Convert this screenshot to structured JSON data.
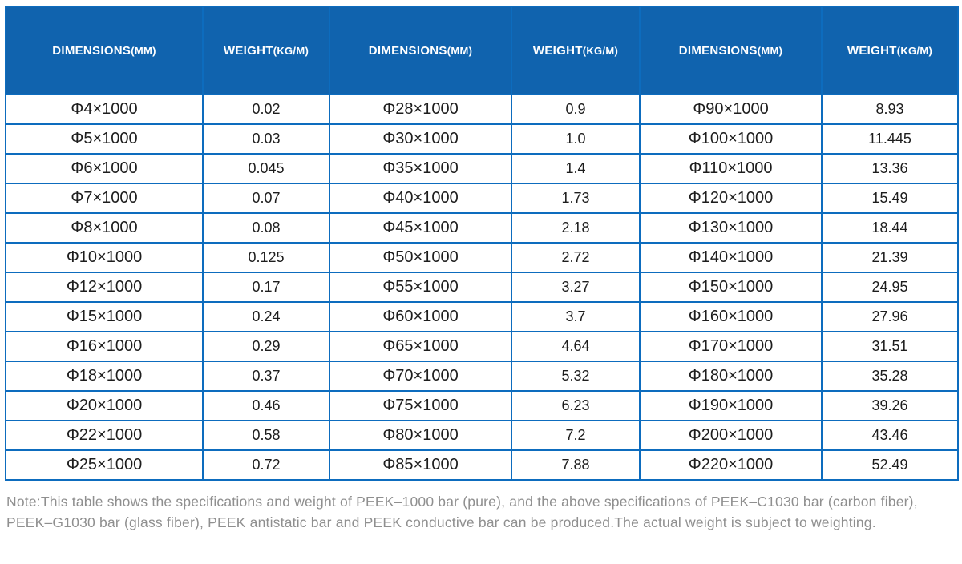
{
  "colors": {
    "header_background": "#1063ae",
    "grid_border": "#0d6cbe",
    "cell_text": "#1d1d1d",
    "note_text": "#8f8f8f"
  },
  "header": {
    "dimensions": {
      "label": "DIMENSIONS",
      "unit": "(MM)"
    },
    "weight": {
      "label": "WEIGHT",
      "unit": "(KG/M)"
    }
  },
  "table": {
    "rows": [
      [
        "Φ4×1000",
        "0.02",
        "Φ28×1000",
        "0.9",
        "Φ90×1000",
        "8.93"
      ],
      [
        "Φ5×1000",
        "0.03",
        "Φ30×1000",
        "1.0",
        "Φ100×1000",
        "11.445"
      ],
      [
        "Φ6×1000",
        "0.045",
        "Φ35×1000",
        "1.4",
        "Φ110×1000",
        "13.36"
      ],
      [
        "Φ7×1000",
        "0.07",
        "Φ40×1000",
        "1.73",
        "Φ120×1000",
        "15.49"
      ],
      [
        "Φ8×1000",
        "0.08",
        "Φ45×1000",
        "2.18",
        "Φ130×1000",
        "18.44"
      ],
      [
        "Φ10×1000",
        "0.125",
        "Φ50×1000",
        "2.72",
        "Φ140×1000",
        "21.39"
      ],
      [
        "Φ12×1000",
        "0.17",
        "Φ55×1000",
        "3.27",
        "Φ150×1000",
        "24.95"
      ],
      [
        "Φ15×1000",
        "0.24",
        "Φ60×1000",
        "3.7",
        "Φ160×1000",
        "27.96"
      ],
      [
        "Φ16×1000",
        "0.29",
        "Φ65×1000",
        "4.64",
        "Φ170×1000",
        "31.51"
      ],
      [
        "Φ18×1000",
        "0.37",
        "Φ70×1000",
        "5.32",
        "Φ180×1000",
        "35.28"
      ],
      [
        "Φ20×1000",
        "0.46",
        "Φ75×1000",
        "6.23",
        "Φ190×1000",
        "39.26"
      ],
      [
        "Φ22×1000",
        "0.58",
        "Φ80×1000",
        "7.2",
        "Φ200×1000",
        "43.46"
      ],
      [
        "Φ25×1000",
        "0.72",
        "Φ85×1000",
        "7.88",
        "Φ220×1000",
        "52.49"
      ]
    ]
  },
  "note": {
    "line1": "Note:This table shows the specifications and weight of PEEK–1000 bar (pure), and the above specifications of PEEK–C1030 bar (carbon fiber),",
    "line2": "PEEK–G1030 bar (glass fiber), PEEK antistatic bar and PEEK conductive bar can be produced.The actual weight is subject to weighting."
  }
}
